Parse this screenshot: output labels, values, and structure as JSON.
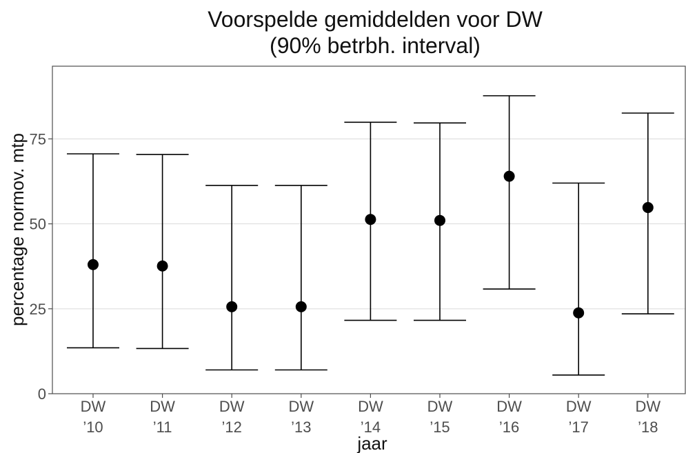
{
  "chart_data": {
    "type": "errorbar",
    "title": "Voorspelde gemiddelden voor DW",
    "subtitle": "(90% betrbh. interval)",
    "xlabel": "jaar",
    "ylabel": "percentage normov. mtp",
    "categories": [
      {
        "line1": "DW",
        "line2": "’10"
      },
      {
        "line1": "DW",
        "line2": "’11"
      },
      {
        "line1": "DW",
        "line2": "’12"
      },
      {
        "line1": "DW",
        "line2": "’13"
      },
      {
        "line1": "DW",
        "line2": "’14"
      },
      {
        "line1": "DW",
        "line2": "’15"
      },
      {
        "line1": "DW",
        "line2": "’16"
      },
      {
        "line1": "DW",
        "line2": "’17"
      },
      {
        "line1": "DW",
        "line2": "’18"
      }
    ],
    "values": [
      38,
      37.6,
      25.6,
      25.6,
      51.3,
      51,
      64,
      23.8,
      54.8
    ],
    "lower": [
      13.5,
      13.3,
      7,
      7,
      21.6,
      21.6,
      30.8,
      5.5,
      23.5
    ],
    "upper": [
      70.6,
      70.4,
      61.3,
      61.3,
      79.9,
      79.7,
      87.7,
      62,
      82.6
    ],
    "yticks": [
      0,
      25,
      50,
      75
    ],
    "ylim": [
      0,
      96.4
    ],
    "grid": "horizontal-major",
    "colors": {
      "marks": "#000000",
      "grid": "#d9d9d9",
      "frame": "#4d4d4d",
      "ticks": "#4d4d4d"
    }
  }
}
